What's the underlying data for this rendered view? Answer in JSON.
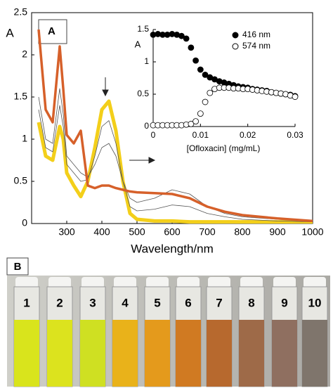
{
  "chart_data": [
    {
      "type": "line",
      "panel_label": "A",
      "ylabel": "A",
      "xlabel": "Wavelength/nm",
      "x": [
        220,
        240,
        260,
        280,
        290,
        300,
        320,
        340,
        360,
        380,
        400,
        420,
        440,
        460,
        480,
        500,
        550,
        600,
        650,
        700,
        750,
        800,
        900,
        1000
      ],
      "xlim": [
        200,
        1000
      ],
      "xticks": [
        300,
        400,
        500,
        600,
        700,
        800,
        900,
        1000
      ],
      "ylim": [
        0,
        2.5
      ],
      "yticks": [
        0,
        0.5,
        1,
        1.5,
        2,
        2.5
      ],
      "series": [
        {
          "color": "#f3cf1a",
          "values": [
            1.2,
            0.8,
            0.75,
            1.15,
            1.0,
            0.6,
            0.45,
            0.32,
            0.5,
            0.9,
            1.35,
            1.45,
            1.1,
            0.5,
            0.12,
            0.05,
            0.03,
            0.03,
            0.02,
            0.02,
            0.02,
            0.02,
            0.02,
            0.02
          ]
        },
        {
          "color": "#555555",
          "values": [
            1.35,
            0.9,
            0.85,
            1.4,
            1.15,
            0.7,
            0.6,
            0.5,
            0.52,
            0.8,
            1.15,
            1.22,
            0.95,
            0.5,
            0.2,
            0.15,
            0.17,
            0.22,
            0.2,
            0.12,
            0.08,
            0.05,
            0.03,
            0.02
          ]
        },
        {
          "color": "#555555",
          "values": [
            1.5,
            1.0,
            0.95,
            1.6,
            1.3,
            0.8,
            0.7,
            0.6,
            0.55,
            0.7,
            0.9,
            0.95,
            0.8,
            0.5,
            0.3,
            0.25,
            0.3,
            0.4,
            0.35,
            0.2,
            0.12,
            0.08,
            0.05,
            0.03
          ]
        },
        {
          "color": "#d6602a",
          "values": [
            2.3,
            1.35,
            1.2,
            2.1,
            1.6,
            1.05,
            0.95,
            1.1,
            0.45,
            0.42,
            0.45,
            0.45,
            0.42,
            0.4,
            0.38,
            0.37,
            0.36,
            0.35,
            0.3,
            0.2,
            0.14,
            0.1,
            0.06,
            0.03
          ]
        }
      ]
    },
    {
      "type": "scatter",
      "ylabel": "A",
      "xlabel": "[Ofloxacin] (mg/mL)",
      "legend": "upper right",
      "x": [
        0,
        0.001,
        0.002,
        0.003,
        0.004,
        0.005,
        0.006,
        0.007,
        0.008,
        0.009,
        0.01,
        0.011,
        0.012,
        0.013,
        0.014,
        0.015,
        0.016,
        0.017,
        0.018,
        0.019,
        0.02,
        0.021,
        0.022,
        0.023,
        0.024,
        0.025,
        0.026,
        0.027,
        0.028,
        0.029,
        0.03
      ],
      "xlim": [
        0,
        0.03
      ],
      "xticks": [
        0,
        0.01,
        0.02,
        0.03
      ],
      "ylim": [
        0,
        1.5
      ],
      "yticks": [
        0,
        0.5,
        1,
        1.5
      ],
      "series": [
        {
          "name": "416 nm",
          "color": "#000000",
          "values": [
            1.42,
            1.43,
            1.42,
            1.42,
            1.43,
            1.42,
            1.4,
            1.36,
            1.22,
            1.02,
            0.88,
            0.8,
            0.76,
            0.73,
            0.7,
            0.68,
            0.66,
            0.64,
            0.62,
            0.61,
            0.6,
            0.58,
            0.57,
            0.56,
            0.55,
            0.53,
            0.52,
            0.51,
            0.5,
            0.49,
            0.47
          ]
        },
        {
          "name": "574 nm",
          "color": "none",
          "values": [
            0.02,
            0.02,
            0.02,
            0.02,
            0.02,
            0.02,
            0.02,
            0.03,
            0.04,
            0.08,
            0.2,
            0.38,
            0.52,
            0.58,
            0.6,
            0.6,
            0.6,
            0.59,
            0.59,
            0.58,
            0.58,
            0.57,
            0.56,
            0.55,
            0.54,
            0.53,
            0.52,
            0.51,
            0.5,
            0.48,
            0.46
          ]
        }
      ]
    }
  ],
  "panel_b": {
    "label": "B",
    "vials": [
      "1",
      "2",
      "3",
      "4",
      "5",
      "6",
      "7",
      "8",
      "9",
      "10"
    ]
  }
}
